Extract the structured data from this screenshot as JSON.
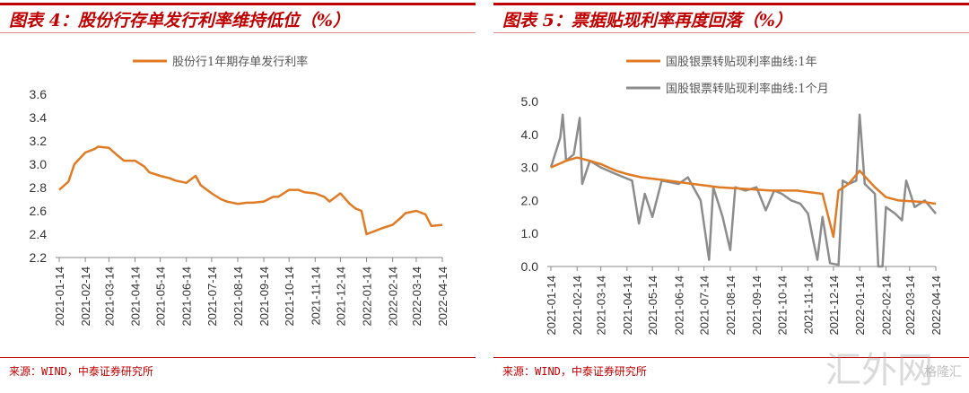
{
  "panels": [
    {
      "title": "图表 4：股份行存单发行利率维持低位（%）",
      "source": "来源：WIND，中泰证券研究所"
    },
    {
      "title": "图表 5：票据贴现利率再度回落（%）",
      "source": "来源：WIND，中泰证券研究所"
    }
  ],
  "watermark": {
    "main": "汇外网",
    "sub": "格隆汇"
  },
  "chart_data": [
    {
      "type": "line",
      "title": "股份行存单发行利率维持低位（%）",
      "ylim": [
        2.2,
        3.6
      ],
      "yticks": [
        2.2,
        2.4,
        2.6,
        2.8,
        3.0,
        3.2,
        3.4,
        3.6
      ],
      "ytick_format": 1,
      "xticks": [
        "2021-01-14",
        "2021-02-14",
        "2021-03-14",
        "2021-04-14",
        "2021-05-14",
        "2021-06-14",
        "2021-07-14",
        "2021-08-14",
        "2021-09-14",
        "2021-10-14",
        "2021-11-14",
        "2021-12-14",
        "2022-01-14",
        "2022-02-14",
        "2022-03-14",
        "2022-04-14"
      ],
      "legend": "top-center",
      "series": [
        {
          "name": "股份行1年期存单发行利率",
          "color": "#e07b24",
          "x": [
            "2021-01-14",
            "2021-01-25",
            "2021-02-01",
            "2021-02-14",
            "2021-02-25",
            "2021-03-01",
            "2021-03-14",
            "2021-03-25",
            "2021-04-01",
            "2021-04-14",
            "2021-04-25",
            "2021-05-01",
            "2021-05-14",
            "2021-05-25",
            "2021-06-01",
            "2021-06-14",
            "2021-06-25",
            "2021-07-01",
            "2021-07-14",
            "2021-07-25",
            "2021-08-01",
            "2021-08-14",
            "2021-08-25",
            "2021-09-01",
            "2021-09-14",
            "2021-09-25",
            "2021-10-01",
            "2021-10-14",
            "2021-10-25",
            "2021-11-01",
            "2021-11-14",
            "2021-11-25",
            "2021-12-01",
            "2021-12-14",
            "2021-12-25",
            "2022-01-01",
            "2022-01-08",
            "2022-01-14",
            "2022-01-25",
            "2022-02-01",
            "2022-02-14",
            "2022-02-25",
            "2022-03-01",
            "2022-03-14",
            "2022-03-25",
            "2022-04-01",
            "2022-04-14"
          ],
          "y": [
            2.78,
            2.85,
            3.0,
            3.1,
            3.13,
            3.15,
            3.14,
            3.07,
            3.03,
            3.03,
            2.98,
            2.93,
            2.9,
            2.88,
            2.86,
            2.84,
            2.9,
            2.82,
            2.75,
            2.7,
            2.68,
            2.66,
            2.67,
            2.67,
            2.68,
            2.72,
            2.72,
            2.78,
            2.78,
            2.76,
            2.75,
            2.72,
            2.68,
            2.75,
            2.66,
            2.62,
            2.6,
            2.4,
            2.43,
            2.45,
            2.48,
            2.55,
            2.58,
            2.6,
            2.57,
            2.47,
            2.48
          ]
        }
      ]
    },
    {
      "type": "line",
      "title": "票据贴现利率再度回落（%）",
      "ylim": [
        0,
        5
      ],
      "yticks": [
        0,
        1,
        2,
        3,
        4,
        5
      ],
      "ytick_format": 1,
      "xticks": [
        "2021-01-14",
        "2021-02-14",
        "2021-03-14",
        "2021-04-14",
        "2021-05-14",
        "2021-06-14",
        "2021-07-14",
        "2021-08-14",
        "2021-09-14",
        "2021-10-14",
        "2021-11-14",
        "2021-12-14",
        "2022-01-14",
        "2022-02-14",
        "2022-03-14",
        "2022-04-14"
      ],
      "legend": "top-center",
      "series": [
        {
          "name": "国股银票转贴现利率曲线:1年",
          "color": "#e07b24",
          "x": [
            "2021-01-14",
            "2021-02-01",
            "2021-02-14",
            "2021-03-01",
            "2021-03-14",
            "2021-04-01",
            "2021-04-14",
            "2021-05-01",
            "2021-06-01",
            "2021-07-01",
            "2021-08-01",
            "2021-09-01",
            "2021-10-01",
            "2021-11-01",
            "2021-12-01",
            "2021-12-14",
            "2021-12-20",
            "2022-01-01",
            "2022-01-14",
            "2022-02-01",
            "2022-02-14",
            "2022-03-01",
            "2022-04-01",
            "2022-04-14"
          ],
          "y": [
            3.0,
            3.2,
            3.3,
            3.2,
            3.1,
            2.9,
            2.8,
            2.7,
            2.6,
            2.5,
            2.4,
            2.35,
            2.3,
            2.3,
            2.2,
            0.9,
            2.3,
            2.5,
            2.9,
            2.4,
            2.1,
            2.0,
            1.95,
            1.9
          ]
        },
        {
          "name": "国股银票转贴现利率曲线:1个月",
          "color": "#8c8c8c",
          "x": [
            "2021-01-14",
            "2021-01-25",
            "2021-01-28",
            "2021-02-01",
            "2021-02-10",
            "2021-02-17",
            "2021-02-20",
            "2021-03-01",
            "2021-03-14",
            "2021-04-01",
            "2021-04-20",
            "2021-04-28",
            "2021-05-05",
            "2021-05-14",
            "2021-05-25",
            "2021-06-14",
            "2021-06-25",
            "2021-07-10",
            "2021-07-20",
            "2021-07-25",
            "2021-08-05",
            "2021-08-14",
            "2021-08-20",
            "2021-09-01",
            "2021-09-14",
            "2021-09-25",
            "2021-10-05",
            "2021-10-14",
            "2021-10-25",
            "2021-11-05",
            "2021-11-14",
            "2021-11-20",
            "2021-11-25",
            "2021-12-01",
            "2021-12-10",
            "2021-12-20",
            "2021-12-25",
            "2022-01-01",
            "2022-01-10",
            "2022-01-14",
            "2022-01-20",
            "2022-02-01",
            "2022-02-05",
            "2022-02-10",
            "2022-02-14",
            "2022-02-25",
            "2022-03-05",
            "2022-03-10",
            "2022-03-20",
            "2022-04-01",
            "2022-04-14"
          ],
          "y": [
            3.0,
            3.9,
            4.6,
            3.2,
            3.4,
            4.5,
            2.5,
            3.2,
            3.0,
            2.8,
            2.6,
            1.3,
            2.2,
            1.5,
            2.6,
            2.5,
            2.7,
            2.0,
            0.2,
            2.4,
            1.5,
            0.5,
            2.4,
            2.3,
            2.4,
            1.7,
            2.3,
            2.2,
            2.0,
            1.9,
            1.6,
            0.8,
            0.2,
            1.5,
            0.1,
            0.05,
            2.6,
            2.5,
            2.6,
            4.6,
            2.5,
            2.2,
            0.0,
            0.0,
            1.8,
            1.6,
            1.4,
            2.6,
            1.8,
            2.0,
            1.6
          ]
        }
      ]
    }
  ]
}
